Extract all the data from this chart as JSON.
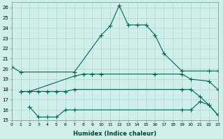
{
  "xlabel": "Humidex (Indice chaleur)",
  "xlim": [
    0,
    23
  ],
  "ylim": [
    15,
    26.5
  ],
  "yticks": [
    15,
    16,
    17,
    18,
    19,
    20,
    21,
    22,
    23,
    24,
    25,
    26
  ],
  "xticks": [
    0,
    1,
    2,
    3,
    4,
    5,
    6,
    7,
    8,
    9,
    10,
    11,
    12,
    13,
    14,
    15,
    16,
    17,
    18,
    19,
    20,
    21,
    22,
    23
  ],
  "bg_color": "#d0eeea",
  "grid_color": "#b0d8d0",
  "line_color": "#006655",
  "line1_x": [
    0,
    1,
    7,
    10,
    11,
    12,
    13,
    14,
    15,
    16,
    17,
    19,
    22,
    23
  ],
  "line1_y": [
    20.2,
    19.7,
    19.7,
    23.3,
    24.2,
    26.2,
    24.3,
    24.3,
    24.3,
    23.3,
    21.5,
    19.8,
    19.8,
    19.8
  ],
  "line2_x": [
    1,
    2,
    7,
    8,
    9,
    10,
    16,
    19,
    20,
    22,
    23
  ],
  "line2_y": [
    17.8,
    17.8,
    19.3,
    19.5,
    19.5,
    19.5,
    19.5,
    19.5,
    19.0,
    18.8,
    18.0
  ],
  "line3_x": [
    1,
    2,
    3,
    4,
    5,
    6,
    7,
    19,
    20,
    21,
    22,
    23
  ],
  "line3_y": [
    17.8,
    17.8,
    17.8,
    17.8,
    17.8,
    17.8,
    18.0,
    18.0,
    18.0,
    17.3,
    16.5,
    15.5
  ],
  "line4_x": [
    2,
    3,
    4,
    5,
    6,
    7,
    19,
    20,
    21,
    22,
    23
  ],
  "line4_y": [
    16.3,
    15.3,
    15.3,
    15.3,
    16.0,
    16.0,
    16.0,
    16.0,
    16.8,
    16.5,
    15.5
  ]
}
